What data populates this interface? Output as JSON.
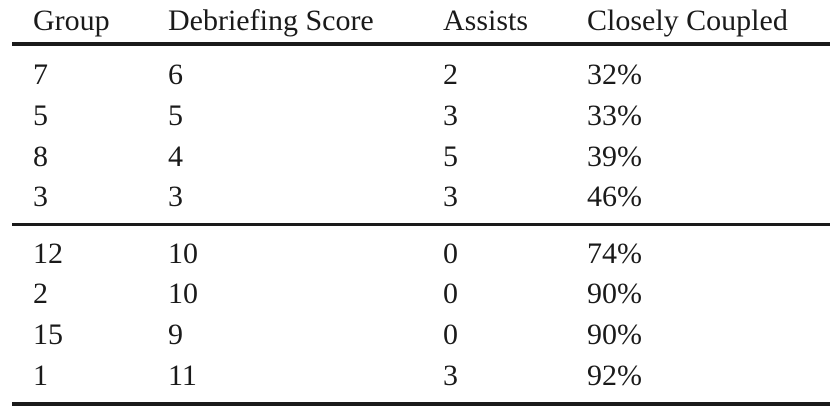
{
  "table": {
    "headers": [
      "Group",
      "Debriefing Score",
      "Assists",
      "Closely Coupled"
    ],
    "groups": [
      [
        [
          "7",
          "6",
          "2",
          "32%"
        ],
        [
          "5",
          "5",
          "3",
          "33%"
        ],
        [
          "8",
          "4",
          "5",
          "39%"
        ],
        [
          "3",
          "3",
          "3",
          "46%"
        ]
      ],
      [
        [
          "12",
          "10",
          "0",
          "74%"
        ],
        [
          "2",
          "10",
          "0",
          "90%"
        ],
        [
          "15",
          "9",
          "0",
          "90%"
        ],
        [
          "1",
          "11",
          "3",
          "92%"
        ]
      ]
    ]
  }
}
